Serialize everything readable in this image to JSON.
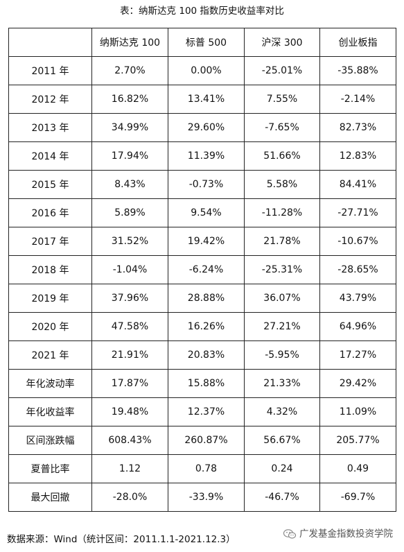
{
  "title": "表：纳斯达克 100 指数历史收益率对比",
  "table": {
    "headers": [
      "",
      "纳斯达克 100",
      "标普 500",
      "沪深 300",
      "创业板指"
    ],
    "rows": [
      [
        "2011 年",
        "2.70%",
        "0.00%",
        "-25.01%",
        "-35.88%"
      ],
      [
        "2012 年",
        "16.82%",
        "13.41%",
        "7.55%",
        "-2.14%"
      ],
      [
        "2013 年",
        "34.99%",
        "29.60%",
        "-7.65%",
        "82.73%"
      ],
      [
        "2014 年",
        "17.94%",
        "11.39%",
        "51.66%",
        "12.83%"
      ],
      [
        "2015 年",
        "8.43%",
        "-0.73%",
        "5.58%",
        "84.41%"
      ],
      [
        "2016 年",
        "5.89%",
        "9.54%",
        "-11.28%",
        "-27.71%"
      ],
      [
        "2017 年",
        "31.52%",
        "19.42%",
        "21.78%",
        "-10.67%"
      ],
      [
        "2018 年",
        "-1.04%",
        "-6.24%",
        "-25.31%",
        "-28.65%"
      ],
      [
        "2019 年",
        "37.96%",
        "28.88%",
        "36.07%",
        "43.79%"
      ],
      [
        "2020 年",
        "47.58%",
        "16.26%",
        "27.21%",
        "64.96%"
      ],
      [
        "2021 年",
        "21.91%",
        "20.83%",
        "-5.95%",
        "17.27%"
      ],
      [
        "年化波动率",
        "17.87%",
        "15.88%",
        "21.33%",
        "29.42%"
      ],
      [
        "年化收益率",
        "19.48%",
        "12.37%",
        "4.32%",
        "11.09%"
      ],
      [
        "区间涨跌幅",
        "608.43%",
        "260.87%",
        "56.67%",
        "205.77%"
      ],
      [
        "夏普比率",
        "1.12",
        "0.78",
        "0.24",
        "0.49"
      ],
      [
        "最大回撤",
        "-28.0%",
        "-33.9%",
        "-46.7%",
        "-69.7%"
      ]
    ]
  },
  "footer": "数据来源：Wind（统计区间：2011.1.1-2021.12.3）",
  "watermark": {
    "text": "广发基金指数投资学院",
    "icon": "wechat-icon"
  }
}
